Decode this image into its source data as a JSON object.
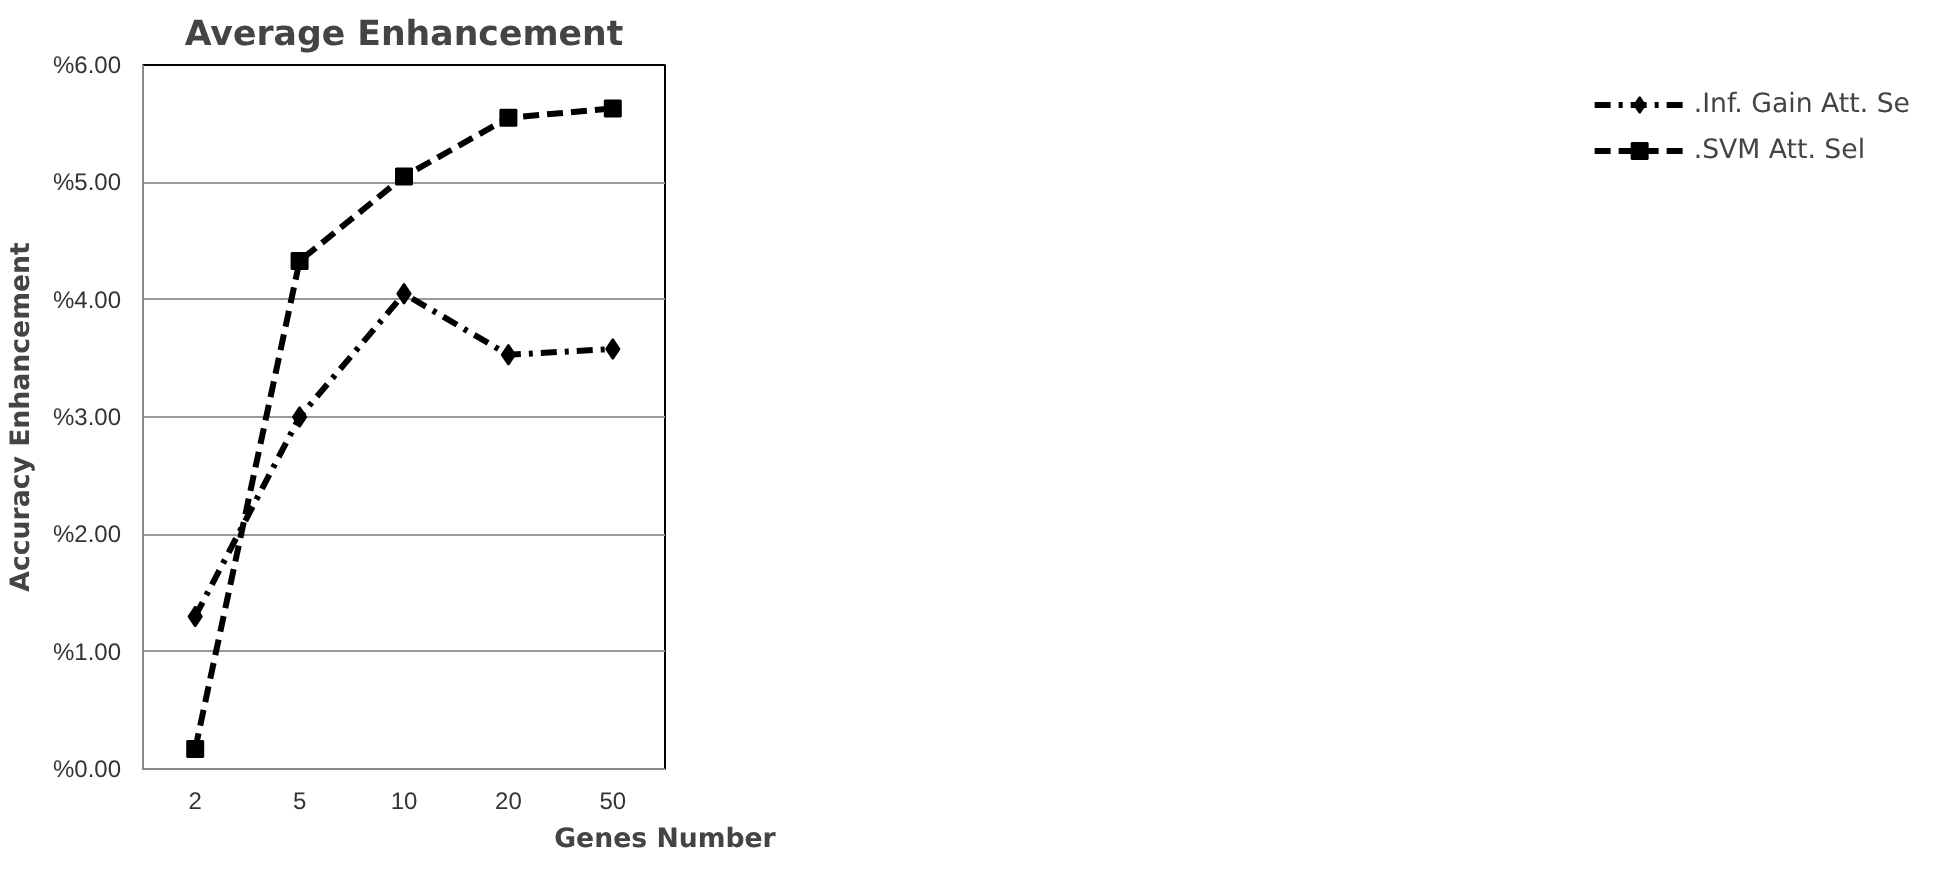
{
  "chart_data": {
    "type": "line",
    "title": "Average Enhancement",
    "xlabel": "Genes Number",
    "ylabel": "Accuracy Enhancement",
    "categories": [
      "2",
      "5",
      "10",
      "20",
      "50"
    ],
    "series": [
      {
        "name": ".Inf. Gain Att. Se",
        "color": "#000000",
        "values": [
          1.3,
          3.0,
          4.05,
          3.53,
          3.58
        ],
        "marker": "diamond",
        "line_style": "dashdot"
      },
      {
        "name": ".SVM Att. Sel",
        "color": "#000000",
        "values": [
          0.17,
          4.33,
          5.05,
          5.55,
          5.63
        ],
        "marker": "square",
        "line_style": "dashed"
      }
    ],
    "ylim": [
      0,
      6
    ],
    "yticks": [
      {
        "value": 0,
        "label": "%0.00"
      },
      {
        "value": 1,
        "label": "%1.00"
      },
      {
        "value": 2,
        "label": "%2.00"
      },
      {
        "value": 3,
        "label": "%3.00"
      },
      {
        "value": 4,
        "label": "%4.00"
      },
      {
        "value": 5,
        "label": "%5.00"
      },
      {
        "value": 6,
        "label": "%6.00"
      }
    ],
    "grid": "y",
    "legend": "right"
  }
}
